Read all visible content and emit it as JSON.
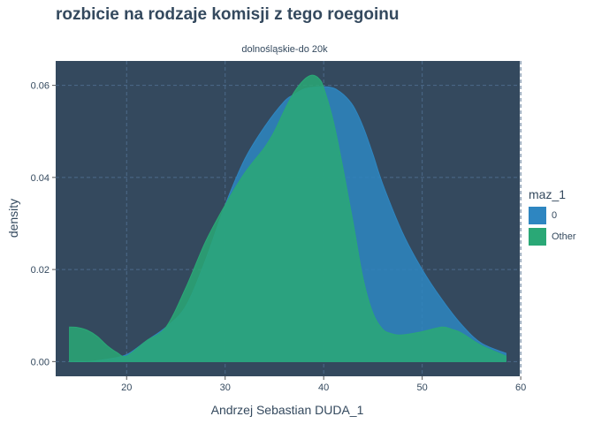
{
  "title": "rozbicie na rodzaje komisji z tego roegoinu",
  "colors": {
    "panel_bg": "#34495e",
    "grid": "#4c6a8a",
    "text": "#34495e",
    "series_0": "#2e86c1",
    "series_other": "#2aa876"
  },
  "legend": {
    "title": "maz_1",
    "items": [
      {
        "label": "0",
        "color": "#2e86c1"
      },
      {
        "label": "Other",
        "color": "#2aa876"
      }
    ]
  },
  "chart_data": {
    "type": "area",
    "facet_label": "dolnośląskie-do 20k",
    "xlabel": "Andrzej Sebastian DUDA_1",
    "ylabel": "density",
    "xlim": [
      12.8,
      59.9
    ],
    "ylim": [
      -0.0032,
      0.0653
    ],
    "x_ticks": [
      20,
      30,
      40,
      50,
      60
    ],
    "y_ticks": [
      0.0,
      0.02,
      0.04,
      0.06
    ],
    "y_tick_labels": [
      "0.00",
      "0.02",
      "0.04",
      "0.06"
    ],
    "grid": true,
    "legend_position": "right",
    "series": [
      {
        "name": "0",
        "color": "#2e86c1",
        "x": [
          14.2,
          16,
          18,
          20,
          22,
          24,
          26,
          28,
          30,
          32,
          34,
          36,
          37,
          38,
          39,
          40,
          41,
          42,
          43,
          44,
          45,
          46,
          48,
          50,
          52,
          54,
          56,
          58.5
        ],
        "y": [
          0.0,
          0.0,
          0.0005,
          0.0015,
          0.0045,
          0.0075,
          0.012,
          0.022,
          0.034,
          0.044,
          0.051,
          0.0565,
          0.058,
          0.0592,
          0.0596,
          0.0597,
          0.0594,
          0.058,
          0.0555,
          0.051,
          0.045,
          0.0385,
          0.028,
          0.02,
          0.0135,
          0.008,
          0.004,
          0.0018
        ]
      },
      {
        "name": "Other",
        "color": "#2aa876",
        "x": [
          14.2,
          15,
          16,
          17,
          18,
          19,
          20,
          22,
          24,
          26,
          28,
          30,
          32,
          34,
          35,
          36,
          37,
          38,
          38.8,
          39.5,
          40,
          41,
          42,
          43,
          44,
          45,
          46,
          47,
          48,
          50,
          52,
          53,
          54,
          56,
          58.5
        ],
        "y": [
          0.0075,
          0.0074,
          0.0068,
          0.0055,
          0.0035,
          0.002,
          0.0012,
          0.0045,
          0.0075,
          0.016,
          0.026,
          0.034,
          0.041,
          0.0465,
          0.05,
          0.0545,
          0.0585,
          0.0612,
          0.0622,
          0.0615,
          0.0595,
          0.052,
          0.0415,
          0.03,
          0.018,
          0.0105,
          0.007,
          0.006,
          0.0058,
          0.0065,
          0.0075,
          0.007,
          0.0062,
          0.0035,
          0.0012
        ]
      }
    ]
  }
}
